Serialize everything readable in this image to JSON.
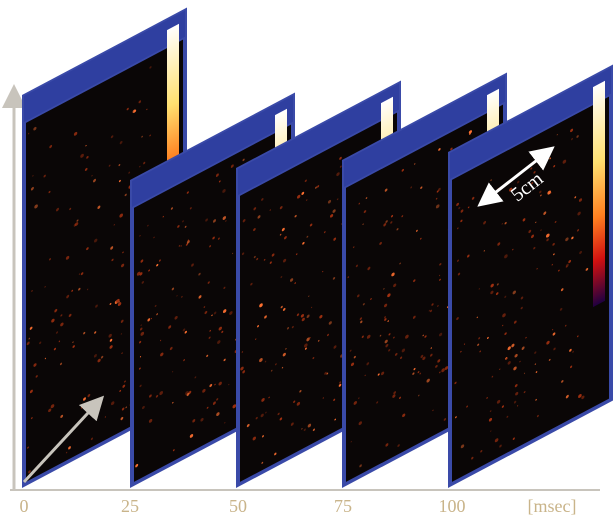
{
  "axis": {
    "ticks": [
      0,
      25,
      50,
      75,
      100
    ],
    "unit": "[msec]"
  },
  "scale_label": "5cm"
}
